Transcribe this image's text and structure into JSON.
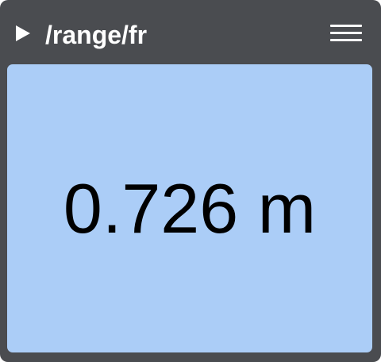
{
  "header": {
    "title": "/range/fr",
    "play_icon": "play-icon",
    "menu_icon": "hamburger-menu-icon"
  },
  "reading": {
    "value": "0.726",
    "unit": "m"
  },
  "colors": {
    "panel_background": "#4a4c50",
    "display_background": "#abcdf7",
    "title_text": "#ffffff",
    "value_text": "#000000"
  }
}
